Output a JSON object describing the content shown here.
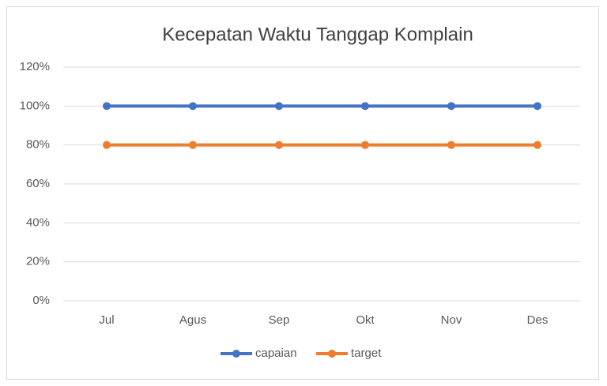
{
  "chart_data": {
    "type": "line",
    "title": "Kecepatan Waktu Tanggap Komplain",
    "categories": [
      "Jul",
      "Agus",
      "Sep",
      "Okt",
      "Nov",
      "Des"
    ],
    "series": [
      {
        "name": "capaian",
        "color": "#4472c4",
        "values": [
          100,
          100,
          100,
          100,
          100,
          100
        ]
      },
      {
        "name": "target",
        "color": "#ed7d31",
        "values": [
          80,
          80,
          80,
          80,
          80,
          80
        ]
      }
    ],
    "ylim": [
      0,
      120
    ],
    "yticks": [
      {
        "value": 0,
        "label": "0%"
      },
      {
        "value": 20,
        "label": "20%"
      },
      {
        "value": 40,
        "label": "40%"
      },
      {
        "value": 60,
        "label": "60%"
      },
      {
        "value": 80,
        "label": "80%"
      },
      {
        "value": 100,
        "label": "100%"
      },
      {
        "value": 120,
        "label": "120%"
      }
    ],
    "grid": true,
    "legend": "bottom"
  }
}
